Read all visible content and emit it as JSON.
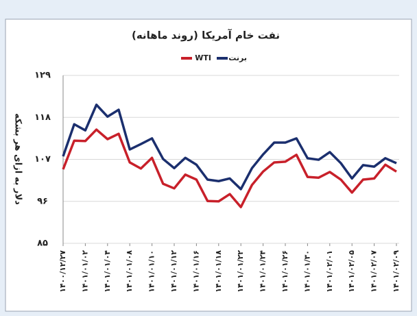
{
  "chart_data": {
    "type": "line",
    "title": "نفت خام آمریکا (روند ماهانه)",
    "y_label": "دلار به ازای هر بشکه",
    "categories": [
      "۱۴۰۰/۱۲/۲۷",
      null,
      "۱۴۰۱/۰۱/۰۲",
      null,
      "۱۴۰۱/۰۱/۰۴",
      null,
      "۱۴۰۱/۰۱/۰۸",
      null,
      "۱۴۰۱/۰۱/۱۰",
      null,
      "۱۴۰۱/۰۱/۱۲",
      null,
      "۱۴۰۱/۰۱/۱۶",
      null,
      "۱۴۰۱/۰۱/۱۸",
      null,
      "۱۴۰۱/۰۱/۲۲",
      null,
      "۱۴۰۱/۰۱/۲۴",
      null,
      "۱۴۰۱/۰۱/۲۶",
      null,
      "۱۴۰۱/۰۱/۳۰",
      null,
      "۱۴۰۱/۰۲/۰۱",
      null,
      "۱۴۰۱/۰۲/۰۵",
      null,
      "۱۴۰۱/۰۲/۰۷",
      null,
      "۱۴۰۱/۰۲/۰۹"
    ],
    "series": [
      {
        "name": "برنت",
        "color": "#1b2f6e",
        "values": [
          107.8,
          116.2,
          114.6,
          121.3,
          118.2,
          120,
          109.6,
          111,
          112.5,
          107.1,
          104.7,
          107.4,
          105.6,
          101.7,
          101.3,
          102,
          99.2,
          104.7,
          108.3,
          111.4,
          111.4,
          112.5,
          107.3,
          106.9,
          108.9,
          106,
          102,
          105.5,
          105.1,
          107.3,
          106
        ]
      },
      {
        "name": "WTI",
        "color": "#c8202a",
        "values": [
          104.4,
          111.9,
          111.8,
          114.8,
          112.3,
          113.7,
          106.2,
          104.6,
          107.4,
          100.6,
          99.4,
          103,
          101.7,
          96.1,
          96,
          97.9,
          94.5,
          100.3,
          103.8,
          106.2,
          106.4,
          108.2,
          102.4,
          102.2,
          103.7,
          101.7,
          98.3,
          101.7,
          102,
          105.6,
          103.8
        ]
      }
    ],
    "ylim": [
      85,
      129
    ],
    "yticks": [
      {
        "value": 85,
        "label": "۸۵"
      },
      {
        "value": 96,
        "label": "۹۶"
      },
      {
        "value": 107,
        "label": "۱۰۷"
      },
      {
        "value": 118,
        "label": "۱۱۸"
      },
      {
        "value": 129,
        "label": "۱۲۹"
      }
    ],
    "grid": true
  }
}
